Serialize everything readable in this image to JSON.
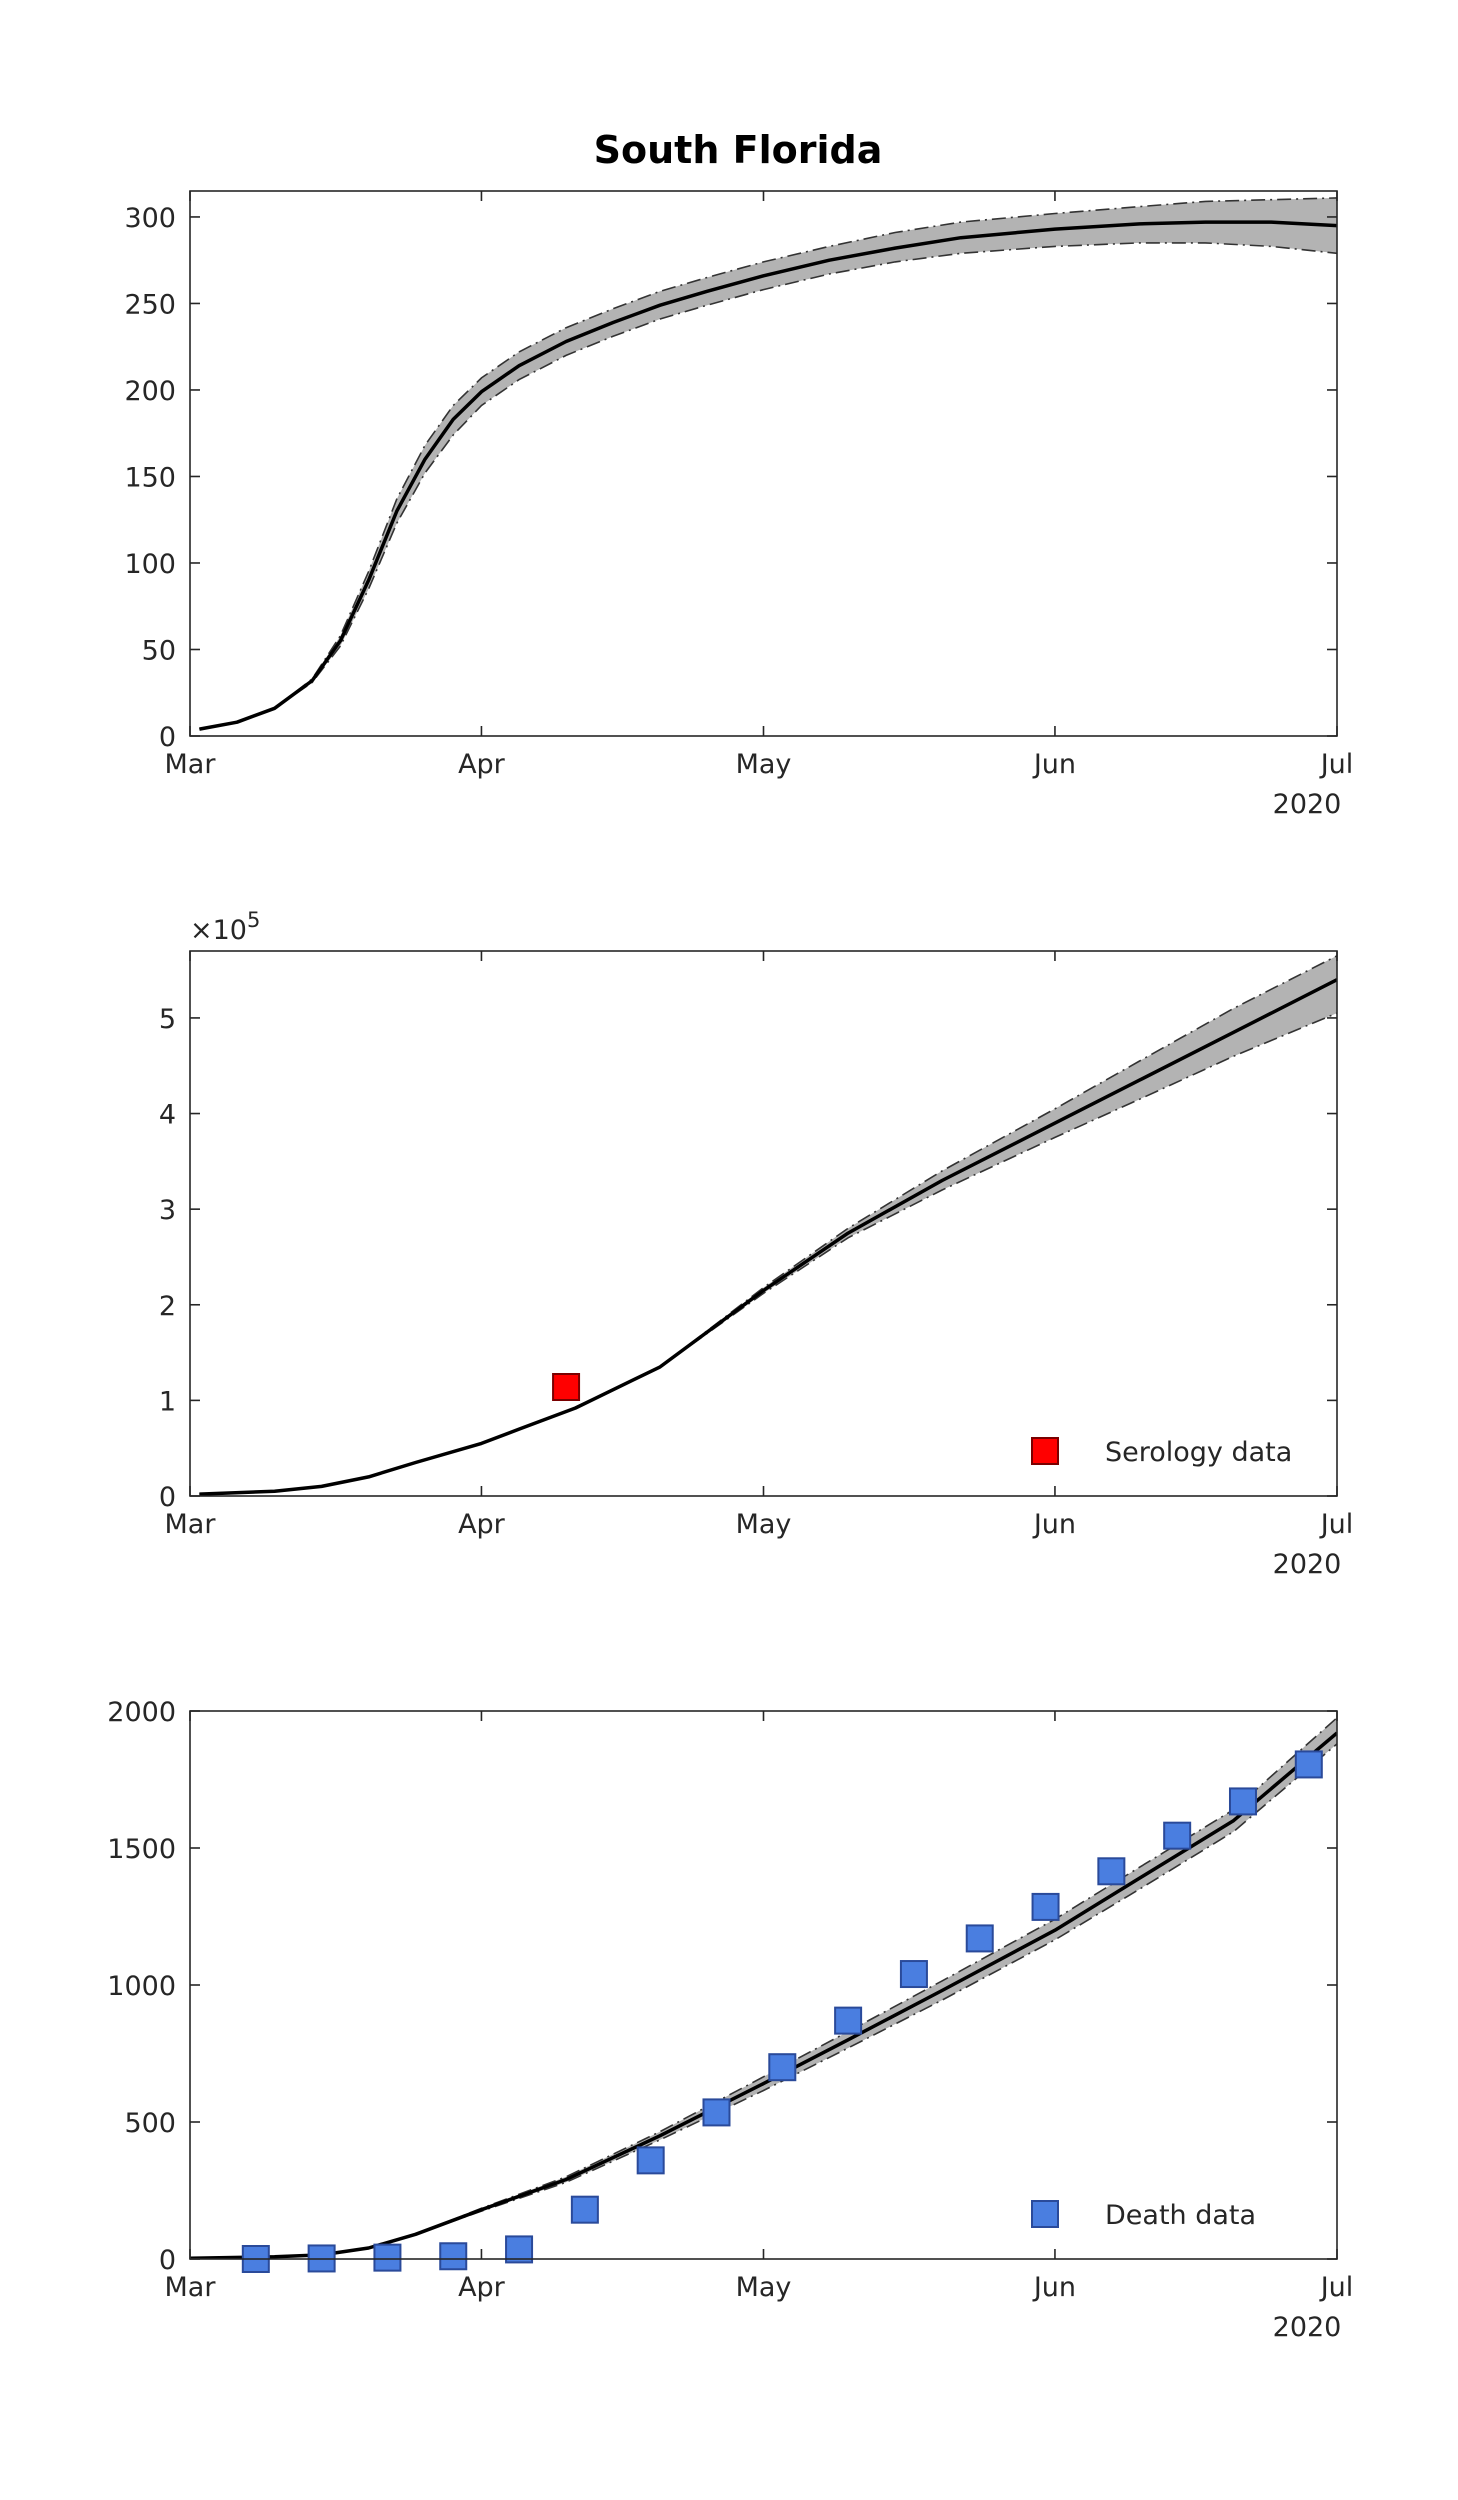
{
  "figure": {
    "title": "South Florida",
    "year_label": "2020"
  },
  "chart_data": [
    {
      "type": "line",
      "title": "South Florida",
      "xlabel": "",
      "ylabel": "",
      "x_ticks": [
        "Mar",
        "Apr",
        "May",
        "Jun",
        "Jul"
      ],
      "x_tick_dates": [
        "2020-03-01",
        "2020-04-01",
        "2020-05-01",
        "2020-06-01",
        "2020-07-01"
      ],
      "xlim": [
        "2020-03-01",
        "2020-07-01"
      ],
      "ylim": [
        0,
        315
      ],
      "y_ticks": [
        0,
        50,
        100,
        150,
        200,
        250,
        300
      ],
      "y_exponent": "",
      "band": true,
      "series": [
        {
          "x": [
            "2020-03-02",
            "2020-03-06",
            "2020-03-10",
            "2020-03-14",
            "2020-03-17",
            "2020-03-20",
            "2020-03-23",
            "2020-03-26",
            "2020-03-29",
            "2020-04-01",
            "2020-04-05",
            "2020-04-10",
            "2020-04-15",
            "2020-04-20",
            "2020-04-25",
            "2020-05-01",
            "2020-05-08",
            "2020-05-15",
            "2020-05-22",
            "2020-06-01",
            "2020-06-10",
            "2020-06-17",
            "2020-06-24",
            "2020-07-01"
          ],
          "y": [
            4,
            8,
            16,
            32,
            55,
            90,
            130,
            160,
            183,
            199,
            214,
            228,
            239,
            249,
            257,
            266,
            275,
            282,
            288,
            293,
            296,
            297,
            297,
            295
          ],
          "lower": [
            4,
            8,
            16,
            31,
            52,
            85,
            123,
            152,
            174,
            191,
            206,
            220,
            231,
            241,
            249,
            258,
            267,
            274,
            279,
            283,
            285,
            285,
            283,
            279
          ],
          "upper": [
            4,
            8,
            16,
            33,
            58,
            95,
            137,
            168,
            191,
            207,
            222,
            236,
            247,
            257,
            265,
            274,
            283,
            291,
            297,
            302,
            306,
            309,
            310,
            311
          ]
        }
      ]
    },
    {
      "type": "line",
      "title": "",
      "xlabel": "",
      "ylabel": "",
      "x_ticks": [
        "Mar",
        "Apr",
        "May",
        "Jun",
        "Jul"
      ],
      "x_tick_dates": [
        "2020-03-01",
        "2020-04-01",
        "2020-05-01",
        "2020-06-01",
        "2020-07-01"
      ],
      "xlim": [
        "2020-03-01",
        "2020-07-01"
      ],
      "ylim": [
        0,
        5.7
      ],
      "y_ticks": [
        0,
        1,
        2,
        3,
        4,
        5
      ],
      "y_exponent": "×10",
      "y_exponent_power": "5",
      "band": true,
      "legend": {
        "label": "Serology data",
        "placement": "bottom-right",
        "marker_color": "#ff0000"
      },
      "series": [
        {
          "x": [
            "2020-03-02",
            "2020-03-10",
            "2020-03-15",
            "2020-03-20",
            "2020-03-25",
            "2020-04-01",
            "2020-04-05",
            "2020-04-11",
            "2020-04-20",
            "2020-05-01",
            "2020-05-10",
            "2020-05-20",
            "2020-06-01",
            "2020-06-10",
            "2020-06-20",
            "2020-07-01"
          ],
          "y": [
            0.02,
            0.05,
            0.1,
            0.2,
            0.35,
            0.55,
            0.7,
            0.92,
            1.35,
            2.15,
            2.75,
            3.3,
            3.9,
            4.35,
            4.85,
            5.4
          ],
          "lower": [
            0.02,
            0.05,
            0.1,
            0.2,
            0.35,
            0.55,
            0.7,
            0.92,
            1.35,
            2.12,
            2.7,
            3.2,
            3.75,
            4.15,
            4.6,
            5.05
          ],
          "upper": [
            0.02,
            0.05,
            0.1,
            0.2,
            0.35,
            0.55,
            0.7,
            0.92,
            1.35,
            2.18,
            2.8,
            3.4,
            4.05,
            4.55,
            5.1,
            5.65
          ]
        }
      ],
      "points": [
        {
          "x": "2020-04-10",
          "y": 1.14
        }
      ]
    },
    {
      "type": "line",
      "title": "",
      "xlabel": "",
      "ylabel": "",
      "x_ticks": [
        "Mar",
        "Apr",
        "May",
        "Jun",
        "Jul"
      ],
      "x_tick_dates": [
        "2020-03-01",
        "2020-04-01",
        "2020-05-01",
        "2020-06-01",
        "2020-07-01"
      ],
      "xlim": [
        "2020-03-01",
        "2020-07-01"
      ],
      "ylim": [
        0,
        2000
      ],
      "y_ticks": [
        0,
        500,
        1000,
        1500,
        2000
      ],
      "y_exponent": "",
      "band": true,
      "legend": {
        "label": "Death data",
        "placement": "bottom-right",
        "marker_color": "#4a7ee0"
      },
      "series": [
        {
          "x": [
            "2020-03-01",
            "2020-03-10",
            "2020-03-15",
            "2020-03-20",
            "2020-03-25",
            "2020-04-01",
            "2020-04-10",
            "2020-04-20",
            "2020-05-01",
            "2020-05-10",
            "2020-05-20",
            "2020-06-01",
            "2020-06-10",
            "2020-06-20",
            "2020-07-01"
          ],
          "y": [
            3,
            8,
            15,
            40,
            90,
            180,
            290,
            450,
            640,
            800,
            980,
            1200,
            1390,
            1600,
            1920
          ],
          "lower": [
            3,
            8,
            15,
            40,
            90,
            175,
            280,
            435,
            615,
            770,
            945,
            1165,
            1350,
            1560,
            1880
          ],
          "upper": [
            3,
            8,
            15,
            40,
            90,
            185,
            300,
            465,
            665,
            830,
            1015,
            1240,
            1430,
            1640,
            1975
          ]
        }
      ],
      "points": [
        {
          "x": "2020-03-08",
          "y": 0
        },
        {
          "x": "2020-03-15",
          "y": 2
        },
        {
          "x": "2020-03-22",
          "y": 5
        },
        {
          "x": "2020-03-29",
          "y": 10
        },
        {
          "x": "2020-04-05",
          "y": 35
        },
        {
          "x": "2020-04-12",
          "y": 180
        },
        {
          "x": "2020-04-19",
          "y": 360
        },
        {
          "x": "2020-04-26",
          "y": 535
        },
        {
          "x": "2020-05-03",
          "y": 700
        },
        {
          "x": "2020-05-10",
          "y": 870
        },
        {
          "x": "2020-05-17",
          "y": 1040
        },
        {
          "x": "2020-05-24",
          "y": 1170
        },
        {
          "x": "2020-05-31",
          "y": 1285
        },
        {
          "x": "2020-06-07",
          "y": 1415
        },
        {
          "x": "2020-06-14",
          "y": 1545
        },
        {
          "x": "2020-06-21",
          "y": 1670
        },
        {
          "x": "2020-06-28",
          "y": 1805
        }
      ]
    }
  ]
}
